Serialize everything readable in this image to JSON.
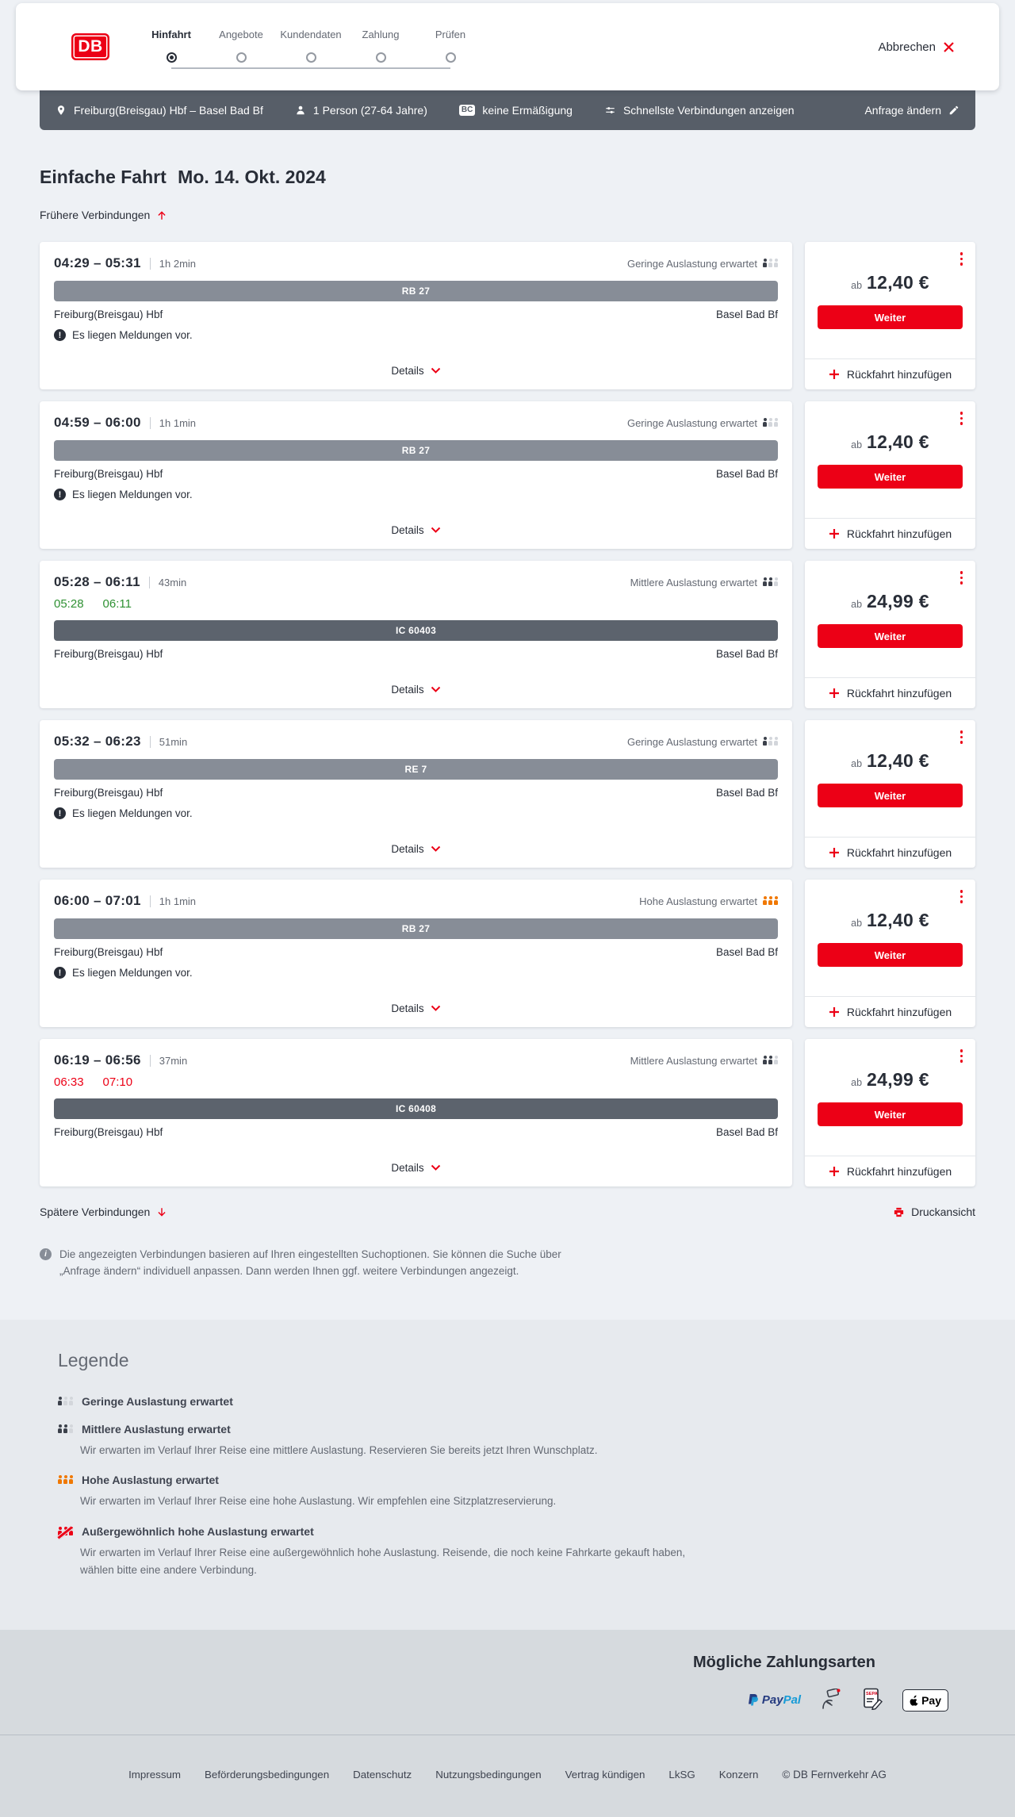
{
  "colors": {
    "db_red": "#ec0016",
    "dark_text": "#282d37",
    "gray_text": "#646973",
    "filter_bar_bg": "#575e68",
    "regional_bar": "#878d97",
    "ic_bar": "#5c636d",
    "occupancy_high_orange": "#f07800",
    "ontime_green": "#2f9133",
    "page_bg": "#eef1f5",
    "legend_bg": "#e7eaee",
    "footer_bg": "#d6dade"
  },
  "header": {
    "logo_text": "DB",
    "cancel_label": "Abbrechen",
    "steps": [
      {
        "label": "Hinfahrt",
        "active": true
      },
      {
        "label": "Angebote",
        "active": false
      },
      {
        "label": "Kundendaten",
        "active": false
      },
      {
        "label": "Zahlung",
        "active": false
      },
      {
        "label": "Prüfen",
        "active": false
      }
    ]
  },
  "filter_bar": {
    "route": "Freiburg(Breisgau) Hbf – Basel Bad Bf",
    "passengers": "1 Person (27-64 Jahre)",
    "bahncard_badge": "BC",
    "discount": "keine Ermäßigung",
    "speed_filter": "Schnellste Verbindungen anzeigen",
    "edit_label": "Anfrage ändern"
  },
  "results": {
    "trip_type": "Einfache Fahrt",
    "date": "Mo. 14. Okt. 2024",
    "earlier_label": "Frühere Verbindungen",
    "later_label": "Spätere Verbindungen",
    "print_label": "Druckansicht",
    "details_label": "Details",
    "price_prefix": "ab",
    "continue_label": "Weiter",
    "add_return_label": "Rückfahrt hinzufügen",
    "info_text": "Die angezeigten Verbindungen basieren auf Ihren eingestellten Suchoptionen. Sie können die Suche über „Anfrage ändern“ individuell anpassen. Dann werden Ihnen ggf. weitere Verbindungen angezeigt."
  },
  "journeys": [
    {
      "times": "04:29 – 05:31",
      "duration": "1h 2min",
      "occupancy_label": "Geringe Auslastung erwartet",
      "occupancy_level": "low",
      "train": "RB 27",
      "train_class": "regional",
      "from": "Freiburg(Breisgau) Hbf",
      "to": "Basel Bad Bf",
      "message": "Es liegen Meldungen vor.",
      "price": "12,40 €"
    },
    {
      "times": "04:59 – 06:00",
      "duration": "1h 1min",
      "occupancy_label": "Geringe Auslastung erwartet",
      "occupancy_level": "low",
      "train": "RB 27",
      "train_class": "regional",
      "from": "Freiburg(Breisgau) Hbf",
      "to": "Basel Bad Bf",
      "message": "Es liegen Meldungen vor.",
      "price": "12,40 €"
    },
    {
      "times": "05:28 – 06:11",
      "duration": "43min",
      "occupancy_label": "Mittlere Auslastung erwartet",
      "occupancy_level": "mid",
      "train": "IC 60403",
      "train_class": "ic",
      "from": "Freiburg(Breisgau) Hbf",
      "to": "Basel Bad Bf",
      "realtime": {
        "dep": "05:28",
        "arr": "06:11",
        "status": "ontime"
      },
      "price": "24,99 €"
    },
    {
      "times": "05:32 – 06:23",
      "duration": "51min",
      "occupancy_label": "Geringe Auslastung erwartet",
      "occupancy_level": "low",
      "train": "RE 7",
      "train_class": "regional",
      "from": "Freiburg(Breisgau) Hbf",
      "to": "Basel Bad Bf",
      "message": "Es liegen Meldungen vor.",
      "price": "12,40 €"
    },
    {
      "times": "06:00 – 07:01",
      "duration": "1h 1min",
      "occupancy_label": "Hohe Auslastung erwartet",
      "occupancy_level": "high",
      "train": "RB 27",
      "train_class": "regional",
      "from": "Freiburg(Breisgau) Hbf",
      "to": "Basel Bad Bf",
      "message": "Es liegen Meldungen vor.",
      "price": "12,40 €"
    },
    {
      "times": "06:19 – 06:56",
      "duration": "37min",
      "occupancy_label": "Mittlere Auslastung erwartet",
      "occupancy_level": "mid",
      "train": "IC 60408",
      "train_class": "ic",
      "from": "Freiburg(Breisgau) Hbf",
      "to": "Basel Bad Bf",
      "realtime": {
        "dep": "06:33",
        "arr": "07:10",
        "status": "delayed"
      },
      "price": "24,99 €"
    }
  ],
  "legend": {
    "heading": "Legende",
    "items": [
      {
        "level": "low",
        "title": "Geringe Auslastung erwartet"
      },
      {
        "level": "mid",
        "title": "Mittlere Auslastung erwartet",
        "description": "Wir erwarten im Verlauf Ihrer Reise eine mittlere Auslastung. Reservieren Sie bereits jetzt Ihren Wunschplatz."
      },
      {
        "level": "high",
        "title": "Hohe Auslastung erwartet",
        "description": "Wir erwarten im Verlauf Ihrer Reise eine hohe Auslastung. Wir empfehlen eine Sitzplatzreservierung."
      },
      {
        "level": "extreme",
        "title": "Außergewöhnlich hohe Auslastung erwartet",
        "description": "Wir erwarten im Verlauf Ihrer Reise eine außergewöhnlich hohe Auslastung. Reisende, die noch keine Fahrkarte gekauft haben, wählen bitte eine andere Verbindung."
      }
    ]
  },
  "payment": {
    "heading": "Mögliche Zahlungsarten",
    "paypal_label": "PayPal",
    "sepa_label": "SEPA",
    "applepay_label": "Pay"
  },
  "footer": {
    "links": [
      "Impressum",
      "Beförderungsbedingungen",
      "Datenschutz",
      "Nutzungsbedingungen",
      "Vertrag kündigen",
      "LkSG",
      "Konzern"
    ],
    "copyright": "© DB Fernverkehr AG"
  }
}
